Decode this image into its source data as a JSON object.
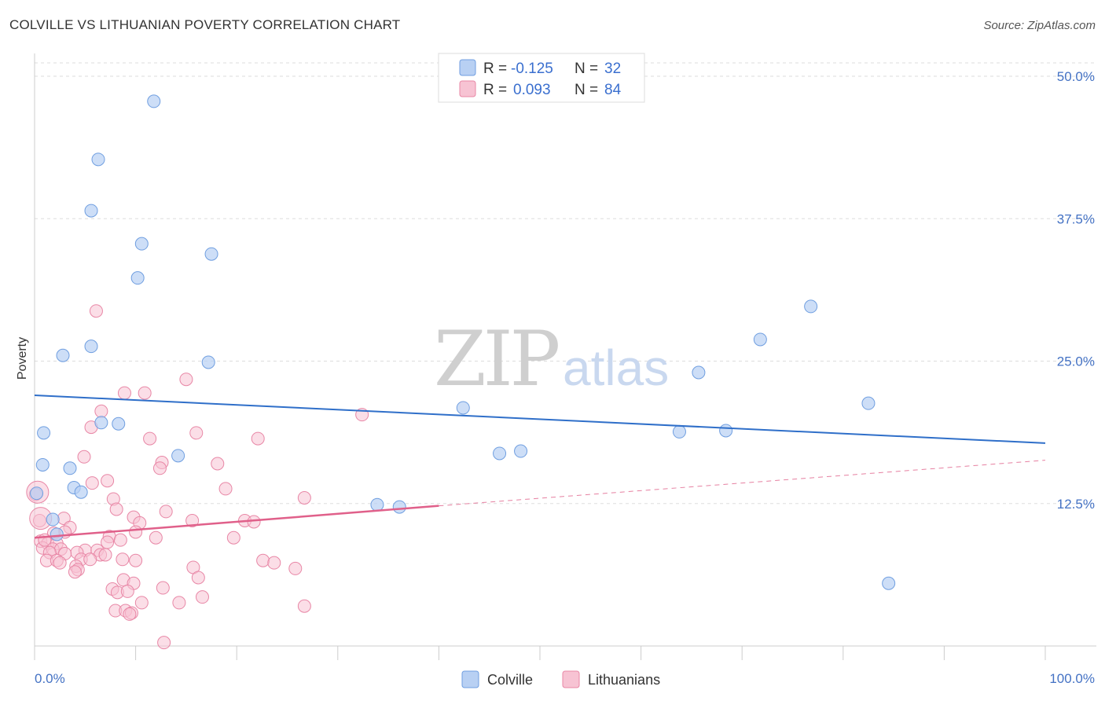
{
  "title": "COLVILLE VS LITHUANIAN POVERTY CORRELATION CHART",
  "source": "Source: ZipAtlas.com",
  "watermark": {
    "zip": "ZIP",
    "atlas": "atlas"
  },
  "legend_top": {
    "colville": {
      "r_label": "R =",
      "r_value": "-0.125",
      "n_label": "N =",
      "n_value": "32"
    },
    "lithuanians": {
      "r_label": "R =",
      "r_value": "0.093",
      "n_label": "N =",
      "n_value": "84"
    }
  },
  "colors": {
    "colville_fill": "#b8d0f3",
    "colville_stroke": "#6f9ee0",
    "colville_line": "#2f6fc9",
    "lith_fill": "#f7c3d3",
    "lith_stroke": "#e887a6",
    "lith_line": "#e0608a",
    "grid": "#dddddd",
    "tick_text": "#4472c4"
  },
  "chart_data": {
    "type": "scatter",
    "title": "COLVILLE VS LITHUANIAN POVERTY CORRELATION CHART",
    "xlabel": "",
    "ylabel": "Poverty",
    "xlim": [
      0,
      100
    ],
    "ylim": [
      0,
      50
    ],
    "x_tick_labels": [
      "0.0%",
      "100.0%"
    ],
    "y_ticks": [
      12.5,
      25.0,
      37.5,
      50.0
    ],
    "y_tick_labels": [
      "12.5%",
      "25.0%",
      "37.5%",
      "50.0%"
    ],
    "grid": true,
    "legend": [
      "Colville",
      "Lithuanians"
    ],
    "series": [
      {
        "name": "Colville",
        "r": -0.125,
        "n": 32,
        "trend": {
          "x0": 0,
          "y0": 22.0,
          "x1": 100,
          "y1": 17.8
        },
        "points": [
          [
            11.8,
            47.8
          ],
          [
            6.3,
            42.7
          ],
          [
            5.6,
            38.2
          ],
          [
            10.6,
            35.3
          ],
          [
            17.5,
            34.4
          ],
          [
            10.2,
            32.3
          ],
          [
            5.6,
            26.3
          ],
          [
            2.8,
            25.5
          ],
          [
            17.2,
            24.9
          ],
          [
            0.9,
            18.7
          ],
          [
            8.3,
            19.5
          ],
          [
            6.6,
            19.6
          ],
          [
            14.2,
            16.7
          ],
          [
            0.8,
            15.9
          ],
          [
            3.5,
            15.6
          ],
          [
            3.9,
            13.9
          ],
          [
            4.6,
            13.5
          ],
          [
            0.2,
            13.4
          ],
          [
            1.8,
            11.1
          ],
          [
            2.2,
            9.8
          ],
          [
            42.4,
            20.9
          ],
          [
            46.0,
            16.9
          ],
          [
            48.1,
            17.1
          ],
          [
            33.9,
            12.4
          ],
          [
            36.1,
            12.2
          ],
          [
            63.8,
            18.8
          ],
          [
            65.7,
            24.0
          ],
          [
            68.4,
            18.9
          ],
          [
            71.8,
            26.9
          ],
          [
            76.8,
            29.8
          ],
          [
            82.5,
            21.3
          ],
          [
            84.5,
            5.5
          ]
        ]
      },
      {
        "name": "Lithuanians",
        "r": 0.093,
        "n": 84,
        "trend": {
          "x0": 0,
          "y0": 9.5,
          "x1": 40,
          "y1": 12.3
        },
        "trend_dashed": {
          "x0": 40,
          "y0": 12.3,
          "x1": 100,
          "y1": 16.3
        },
        "points": [
          [
            6.1,
            29.4
          ],
          [
            15.0,
            23.4
          ],
          [
            8.9,
            22.2
          ],
          [
            10.9,
            22.2
          ],
          [
            32.4,
            20.3
          ],
          [
            6.6,
            20.6
          ],
          [
            5.6,
            19.2
          ],
          [
            16.0,
            18.7
          ],
          [
            22.1,
            18.2
          ],
          [
            11.4,
            18.2
          ],
          [
            4.9,
            16.6
          ],
          [
            12.6,
            16.1
          ],
          [
            12.4,
            15.6
          ],
          [
            18.1,
            16.0
          ],
          [
            7.2,
            14.5
          ],
          [
            5.7,
            14.3
          ],
          [
            18.9,
            13.8
          ],
          [
            7.8,
            12.9
          ],
          [
            26.7,
            13.0
          ],
          [
            0.1,
            13.3
          ],
          [
            8.1,
            12.0
          ],
          [
            13.0,
            11.8
          ],
          [
            9.8,
            11.3
          ],
          [
            0.5,
            11.0
          ],
          [
            2.9,
            11.2
          ],
          [
            10.4,
            10.8
          ],
          [
            15.6,
            11.0
          ],
          [
            20.8,
            11.0
          ],
          [
            21.7,
            10.9
          ],
          [
            3.5,
            10.4
          ],
          [
            10.0,
            10.0
          ],
          [
            3.0,
            10.0
          ],
          [
            1.9,
            9.9
          ],
          [
            12.0,
            9.5
          ],
          [
            19.7,
            9.5
          ],
          [
            7.4,
            9.6
          ],
          [
            0.6,
            9.2
          ],
          [
            1.3,
            9.0
          ],
          [
            2.2,
            9.0
          ],
          [
            7.2,
            9.1
          ],
          [
            8.5,
            9.3
          ],
          [
            0.8,
            8.6
          ],
          [
            1.8,
            8.5
          ],
          [
            2.6,
            8.5
          ],
          [
            5.0,
            8.4
          ],
          [
            6.2,
            8.4
          ],
          [
            4.2,
            8.2
          ],
          [
            1.5,
            8.2
          ],
          [
            3.0,
            8.1
          ],
          [
            6.5,
            8.0
          ],
          [
            7.0,
            8.0
          ],
          [
            4.6,
            7.6
          ],
          [
            5.5,
            7.6
          ],
          [
            1.2,
            7.5
          ],
          [
            2.2,
            7.5
          ],
          [
            8.7,
            7.6
          ],
          [
            10.0,
            7.5
          ],
          [
            22.6,
            7.5
          ],
          [
            23.7,
            7.3
          ],
          [
            2.5,
            7.3
          ],
          [
            4.1,
            7.0
          ],
          [
            4.3,
            6.7
          ],
          [
            15.7,
            6.9
          ],
          [
            25.8,
            6.8
          ],
          [
            4.0,
            6.5
          ],
          [
            16.2,
            6.0
          ],
          [
            8.8,
            5.8
          ],
          [
            9.8,
            5.5
          ],
          [
            12.7,
            5.1
          ],
          [
            7.7,
            5.0
          ],
          [
            8.2,
            4.7
          ],
          [
            9.2,
            4.8
          ],
          [
            16.6,
            4.3
          ],
          [
            14.3,
            3.8
          ],
          [
            10.6,
            3.8
          ],
          [
            26.7,
            3.5
          ],
          [
            8.0,
            3.1
          ],
          [
            9.0,
            3.1
          ],
          [
            9.6,
            2.9
          ],
          [
            9.4,
            2.8
          ],
          [
            12.8,
            0.3
          ],
          [
            0.3,
            13.5
          ],
          [
            0.6,
            11.2
          ],
          [
            1.0,
            9.3
          ]
        ]
      }
    ]
  },
  "bottom_legend": {
    "colville": "Colville",
    "lithuanians": "Lithuanians"
  }
}
